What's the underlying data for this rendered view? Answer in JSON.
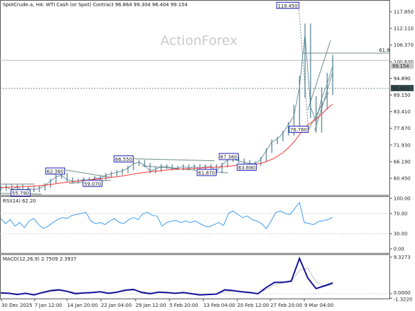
{
  "header": {
    "title": "SpotCrude.a, H4:  WTI Cash (or Spot) Contract  96.864 99.304 96.404 99.154"
  },
  "watermark": "ActionForex",
  "chart_data": [
    {
      "type": "line",
      "title": "SpotCrude.a, H4: WTI Cash (or Spot) Contract",
      "ohlc": {
        "open": 96.864,
        "high": 99.304,
        "low": 96.404,
        "close": 99.154
      },
      "y_ticks": [
        "117.850",
        "112.110",
        "106.370",
        "100.630",
        "94.890",
        "89.150",
        "83.410",
        "77.670",
        "71.930",
        "66.190",
        "60.450"
      ],
      "ylim": [
        57.0,
        119.45
      ],
      "x_labels": [
        "30 Dec 2025",
        "7 Jan 12:00",
        "14 Jan 20:00",
        "22 Jan 04:00",
        "29 Jan 12:00",
        "5 Feb 20:00",
        "13 Feb 04:00",
        "20 Feb 12:00",
        "27 Feb 20:00",
        "9 Mar 04:00"
      ],
      "close": [
        57,
        57.5,
        56.5,
        57.5,
        56,
        57,
        56.5,
        57,
        58,
        59.5,
        61,
        61.5,
        60,
        59.5,
        59.5,
        60,
        59.5,
        60.5,
        60.5,
        61.5,
        62,
        62.5,
        63,
        64,
        65.5,
        66,
        65,
        63,
        63.5,
        64.5,
        64.5,
        64,
        64,
        64.5,
        64,
        64.5,
        64,
        64.5,
        64.5,
        63,
        65,
        67,
        67,
        66.5,
        66,
        65.5,
        65.5,
        67,
        70,
        73,
        74,
        76,
        79,
        82,
        92,
        110,
        85,
        80,
        88,
        93,
        99.154
      ],
      "moving_average": [
        57.2,
        57.3,
        57.4,
        57.5,
        57.6,
        57.7,
        57.8,
        57.9,
        58.1,
        58.3,
        58.6,
        58.9,
        59.1,
        59.3,
        59.5,
        59.7,
        59.9,
        60.1,
        60.3,
        60.5,
        60.8,
        61.0,
        61.3,
        61.6,
        61.9,
        62.2,
        62.5,
        62.7,
        62.9,
        63.1,
        63.3,
        63.5,
        63.6,
        63.7,
        63.8,
        63.9,
        64.0,
        64.1,
        64.2,
        64.3,
        64.4,
        64.6,
        64.8,
        65.0,
        65.1,
        65.2,
        65.3,
        65.6,
        66.2,
        67.0,
        68.0,
        69.3,
        71.0,
        73.0,
        75.5,
        78.0,
        79.5,
        80.8,
        82.5,
        84.5,
        86.0
      ],
      "annotations": [
        {
          "label": "55.790",
          "price": 55.79
        },
        {
          "label": "62.360",
          "price": 62.36
        },
        {
          "label": "59.070",
          "price": 59.07
        },
        {
          "label": "66.550",
          "price": 66.55
        },
        {
          "label": "61.870",
          "price": 61.87
        },
        {
          "label": "67.360",
          "price": 67.36
        },
        {
          "label": "63.690",
          "price": 63.69
        },
        {
          "label": "119.450",
          "price": 119.45
        },
        {
          "label": "76.760",
          "price": 76.76
        }
      ],
      "fib_level": {
        "label": "61.8",
        "price": 103.6
      },
      "current_price": {
        "label": "99.154",
        "price": 99.154
      },
      "level_line": {
        "label": "91.440",
        "price": 91.44
      },
      "colors": {
        "price": "#4a7a8c",
        "ma": "#ff3030",
        "label_box": "#1a1ab0",
        "level_tag": "#2e4a48"
      }
    },
    {
      "type": "line",
      "title": "RSI(14) 62.20",
      "ylim": [
        0,
        100
      ],
      "y_ticks": [
        "100.00",
        "70.00",
        "30.00",
        "0.00"
      ],
      "levels": [
        70,
        30
      ],
      "values": [
        60,
        50,
        58,
        45,
        52,
        42,
        55,
        60,
        48,
        40,
        45,
        52,
        58,
        62,
        60,
        66,
        68,
        70,
        72,
        55,
        50,
        52,
        48,
        55,
        60,
        52,
        50,
        58,
        62,
        58,
        70,
        72,
        66,
        65,
        45,
        52,
        55,
        56,
        52,
        55,
        52,
        55,
        50,
        45,
        44,
        48,
        52,
        46,
        70,
        75,
        68,
        62,
        65,
        58,
        55,
        50,
        40,
        55,
        72,
        75,
        70,
        68,
        80,
        92,
        52,
        50,
        48,
        54,
        56,
        58,
        62.2
      ],
      "color": "#3a9af0"
    },
    {
      "type": "line",
      "title": "MACD(12,26,9) 2.7509 2.3937",
      "ylim": [
        -1.322,
        9.3273
      ],
      "y_ticks": [
        "9.3273",
        "0.0000",
        "-1.3220"
      ],
      "macd": [
        0.2,
        0.1,
        -0.2,
        0.1,
        -0.3,
        0.3,
        0.8,
        1.0,
        0.6,
        0.0,
        0.2,
        0.3,
        0.5,
        0.1,
        0.4,
        0.9,
        1.1,
        0.3,
        0.0,
        0.4,
        0.3,
        0.1,
        0.3,
        0.0,
        -0.3,
        -0.2,
        -0.1,
        1.0,
        0.8,
        0.5,
        0.3,
        0.0,
        1.6,
        2.9,
        2.9,
        3.2,
        9.0,
        4.0,
        1.3,
        2.0,
        2.75
      ],
      "signal": [
        0.2,
        0.15,
        0.0,
        0.0,
        -0.1,
        0.1,
        0.5,
        0.8,
        0.7,
        0.3,
        0.2,
        0.25,
        0.4,
        0.3,
        0.35,
        0.7,
        0.9,
        0.6,
        0.2,
        0.3,
        0.3,
        0.2,
        0.25,
        0.1,
        -0.1,
        -0.15,
        -0.1,
        0.5,
        0.7,
        0.6,
        0.4,
        0.1,
        1.0,
        2.3,
        2.8,
        3.0,
        6.0,
        6.5,
        3.0,
        1.8,
        2.39
      ],
      "colors": {
        "macd": "#10109a",
        "signal": "#c0c0c0"
      }
    }
  ]
}
